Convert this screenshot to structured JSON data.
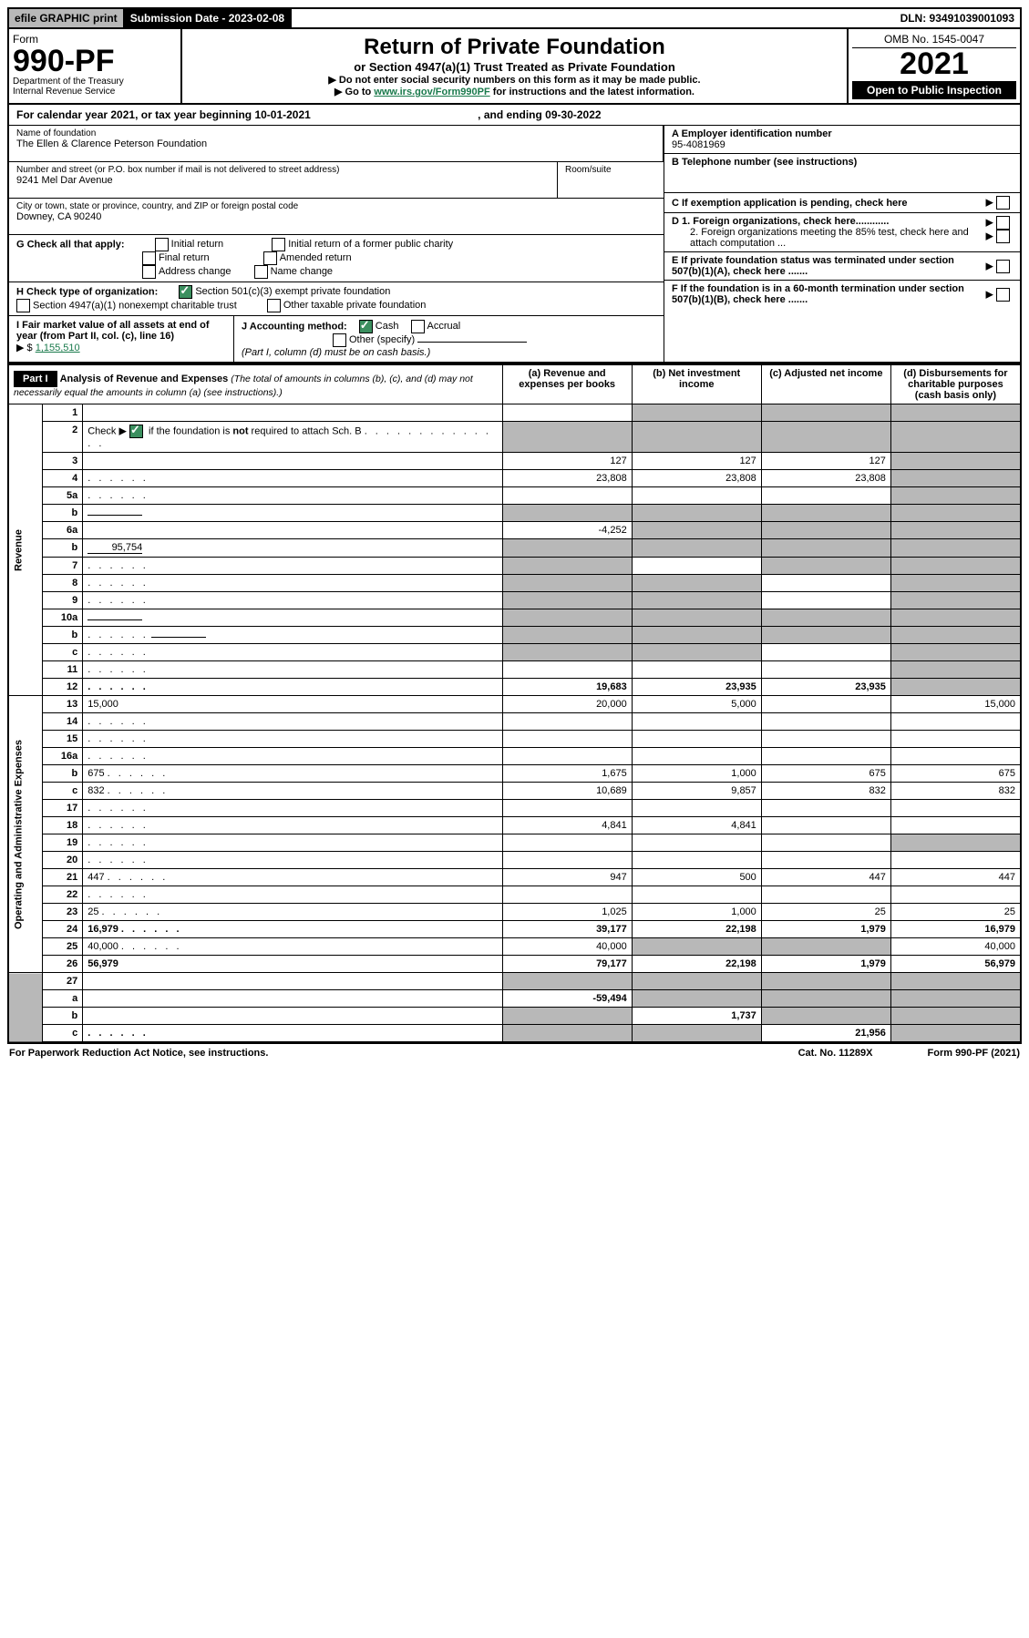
{
  "top": {
    "efile": "efile GRAPHIC print",
    "sub_label": "Submission Date - ",
    "sub_date": "2023-02-08",
    "dln": "DLN: 93491039001093"
  },
  "header": {
    "form_word": "Form",
    "form_no": "990-PF",
    "dept1": "Department of the Treasury",
    "dept2": "Internal Revenue Service",
    "title": "Return of Private Foundation",
    "subtitle": "or Section 4947(a)(1) Trust Treated as Private Foundation",
    "instr1": "▶ Do not enter social security numbers on this form as it may be made public.",
    "instr2_pre": "▶ Go to ",
    "instr2_link": "www.irs.gov/Form990PF",
    "instr2_post": " for instructions and the latest information.",
    "omb": "OMB No. 1545-0047",
    "year": "2021",
    "inspection": "Open to Public Inspection"
  },
  "calyear": {
    "text": "For calendar year 2021, or tax year beginning 10-01-2021",
    "end": ", and ending 09-30-2022"
  },
  "meta": {
    "name_label": "Name of foundation",
    "name": "The Ellen & Clarence Peterson Foundation",
    "addr_label": "Number and street (or P.O. box number if mail is not delivered to street address)",
    "addr": "9241 Mel Dar Avenue",
    "room_label": "Room/suite",
    "city_label": "City or town, state or province, country, and ZIP or foreign postal code",
    "city": "Downey, CA  90240",
    "a_label": "A Employer identification number",
    "a_val": "95-4081969",
    "b_label": "B Telephone number (see instructions)",
    "c_label": "C If exemption application is pending, check here",
    "g_label": "G Check all that apply:",
    "g_opts": [
      "Initial return",
      "Final return",
      "Address change",
      "Initial return of a former public charity",
      "Amended return",
      "Name change"
    ],
    "d1": "D 1. Foreign organizations, check here............",
    "d2": "2. Foreign organizations meeting the 85% test, check here and attach computation ...",
    "h_label": "H Check type of organization:",
    "h1": "Section 501(c)(3) exempt private foundation",
    "h2": "Section 4947(a)(1) nonexempt charitable trust",
    "h3": "Other taxable private foundation",
    "e_label": "E  If private foundation status was terminated under section 507(b)(1)(A), check here .......",
    "i_label": "I Fair market value of all assets at end of year (from Part II, col. (c), line 16)",
    "i_val": "1,155,510",
    "j_label": "J Accounting method:",
    "j_cash": "Cash",
    "j_accrual": "Accrual",
    "j_other": "Other (specify)",
    "j_note": "(Part I, column (d) must be on cash basis.)",
    "f_label": "F  If the foundation is in a 60-month termination under section 507(b)(1)(B), check here ......."
  },
  "part1": {
    "label": "Part I",
    "title": "Analysis of Revenue and Expenses",
    "title_note": " (The total of amounts in columns (b), (c), and (d) may not necessarily equal the amounts in column (a) (see instructions).)",
    "col_a": "(a) Revenue and expenses per books",
    "col_b": "(b) Net investment income",
    "col_c": "(c) Adjusted net income",
    "col_d": "(d) Disbursements for charitable purposes (cash basis only)",
    "side_rev": "Revenue",
    "side_exp": "Operating and Administrative Expenses"
  },
  "rows": [
    {
      "n": "1",
      "d": "",
      "a": "",
      "b": "",
      "c": "",
      "sb": true,
      "sc": true,
      "sd": true
    },
    {
      "n": "2",
      "d": "",
      "dotted": true,
      "a": "",
      "b": "",
      "c": "",
      "sa": true,
      "sb": true,
      "sc": true,
      "sd": true,
      "special": "check"
    },
    {
      "n": "3",
      "d": "",
      "a": "127",
      "b": "127",
      "c": "127",
      "sd": true
    },
    {
      "n": "4",
      "d": "",
      "dotted": true,
      "a": "23,808",
      "b": "23,808",
      "c": "23,808",
      "sd": true
    },
    {
      "n": "5a",
      "d": "",
      "dotted": true,
      "a": "",
      "b": "",
      "c": "",
      "sd": true
    },
    {
      "n": "b",
      "d": "",
      "inline": "",
      "a": "",
      "b": "",
      "c": "",
      "sa": true,
      "sb": true,
      "sc": true,
      "sd": true
    },
    {
      "n": "6a",
      "d": "",
      "a": "-4,252",
      "b": "",
      "c": "",
      "sb": true,
      "sc": true,
      "sd": true
    },
    {
      "n": "b",
      "d": "",
      "inline": "95,754",
      "a": "",
      "b": "",
      "c": "",
      "sa": true,
      "sb": true,
      "sc": true,
      "sd": true
    },
    {
      "n": "7",
      "d": "",
      "dotted": true,
      "a": "",
      "b": "",
      "c": "",
      "sa": true,
      "sc": true,
      "sd": true
    },
    {
      "n": "8",
      "d": "",
      "dotted": true,
      "a": "",
      "b": "",
      "c": "",
      "sa": true,
      "sb": true,
      "sd": true
    },
    {
      "n": "9",
      "d": "",
      "dotted": true,
      "a": "",
      "b": "",
      "c": "",
      "sa": true,
      "sb": true,
      "sd": true
    },
    {
      "n": "10a",
      "d": "",
      "inline": "",
      "a": "",
      "b": "",
      "c": "",
      "sa": true,
      "sb": true,
      "sc": true,
      "sd": true
    },
    {
      "n": "b",
      "d": "",
      "dotted": true,
      "inline": "",
      "a": "",
      "b": "",
      "c": "",
      "sa": true,
      "sb": true,
      "sc": true,
      "sd": true
    },
    {
      "n": "c",
      "d": "",
      "dotted": true,
      "a": "",
      "b": "",
      "c": "",
      "sa": true,
      "sb": true,
      "sd": true
    },
    {
      "n": "11",
      "d": "",
      "dotted": true,
      "a": "",
      "b": "",
      "c": "",
      "sd": true
    },
    {
      "n": "12",
      "d": "",
      "dotted": true,
      "bold": true,
      "a": "19,683",
      "b": "23,935",
      "c": "23,935",
      "sd": true
    },
    {
      "n": "13",
      "d": "15,000",
      "a": "20,000",
      "b": "5,000",
      "c": ""
    },
    {
      "n": "14",
      "d": "",
      "dotted": true,
      "a": "",
      "b": "",
      "c": ""
    },
    {
      "n": "15",
      "d": "",
      "dotted": true,
      "a": "",
      "b": "",
      "c": ""
    },
    {
      "n": "16a",
      "d": "",
      "dotted": true,
      "a": "",
      "b": "",
      "c": ""
    },
    {
      "n": "b",
      "d": "675",
      "dotted": true,
      "a": "1,675",
      "b": "1,000",
      "c": "675"
    },
    {
      "n": "c",
      "d": "832",
      "dotted": true,
      "a": "10,689",
      "b": "9,857",
      "c": "832"
    },
    {
      "n": "17",
      "d": "",
      "dotted": true,
      "a": "",
      "b": "",
      "c": ""
    },
    {
      "n": "18",
      "d": "",
      "dotted": true,
      "a": "4,841",
      "b": "4,841",
      "c": ""
    },
    {
      "n": "19",
      "d": "",
      "dotted": true,
      "a": "",
      "b": "",
      "c": "",
      "sd": true
    },
    {
      "n": "20",
      "d": "",
      "dotted": true,
      "a": "",
      "b": "",
      "c": ""
    },
    {
      "n": "21",
      "d": "447",
      "dotted": true,
      "a": "947",
      "b": "500",
      "c": "447"
    },
    {
      "n": "22",
      "d": "",
      "dotted": true,
      "a": "",
      "b": "",
      "c": ""
    },
    {
      "n": "23",
      "d": "25",
      "dotted": true,
      "a": "1,025",
      "b": "1,000",
      "c": "25"
    },
    {
      "n": "24",
      "d": "16,979",
      "dotted": true,
      "bold": true,
      "a": "39,177",
      "b": "22,198",
      "c": "1,979"
    },
    {
      "n": "25",
      "d": "40,000",
      "dotted": true,
      "a": "40,000",
      "b": "",
      "c": "",
      "sb": true,
      "sc": true
    },
    {
      "n": "26",
      "d": "56,979",
      "bold": true,
      "a": "79,177",
      "b": "22,198",
      "c": "1,979"
    },
    {
      "n": "27",
      "d": "",
      "a": "",
      "b": "",
      "c": "",
      "sa": true,
      "sb": true,
      "sc": true,
      "sd": true
    },
    {
      "n": "a",
      "d": "",
      "bold": true,
      "a": "-59,494",
      "b": "",
      "c": "",
      "sb": true,
      "sc": true,
      "sd": true
    },
    {
      "n": "b",
      "d": "",
      "bold": true,
      "a": "",
      "b": "1,737",
      "c": "",
      "sa": true,
      "sc": true,
      "sd": true
    },
    {
      "n": "c",
      "d": "",
      "dotted": true,
      "bold": true,
      "a": "",
      "b": "",
      "c": "21,956",
      "sa": true,
      "sb": true,
      "sd": true
    }
  ],
  "footer": {
    "left": "For Paperwork Reduction Act Notice, see instructions.",
    "mid": "Cat. No. 11289X",
    "right": "Form 990-PF (2021)"
  }
}
